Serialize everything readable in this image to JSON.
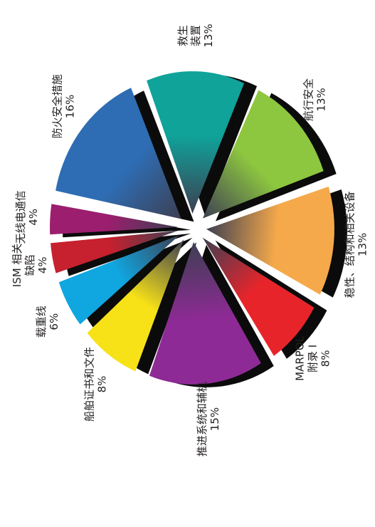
{
  "chart_data": {
    "type": "pie",
    "title": "",
    "exploded": true,
    "three_d": true,
    "label_orientation": "rotated-90",
    "categories": [
      "救生装置",
      "航行安全",
      "稳性、结构和相关设备",
      "MARPOL附录I",
      "推进系统和辅机",
      "船舶证书和文件",
      "载重线",
      "ISM相关缺陷",
      "无线电通信",
      "防火安全措施"
    ],
    "values": [
      13,
      13,
      13,
      8,
      15,
      8,
      6,
      4,
      4,
      16
    ],
    "slices": [
      {
        "label_lines": [
          "救生",
          "装置",
          "13%"
        ],
        "value": 13,
        "color": "#0fa39a"
      },
      {
        "label_lines": [
          "航行安全",
          "13%"
        ],
        "value": 13,
        "color": "#8dc63f"
      },
      {
        "label_lines": [
          "稳性、结构和相关设备",
          "13%"
        ],
        "value": 13,
        "color": "#f5a94a"
      },
      {
        "label_lines": [
          "MARPOL",
          "附录 I",
          "8%"
        ],
        "value": 8,
        "color": "#e8242b"
      },
      {
        "label_lines": [
          "推进系统和辅机",
          "15%"
        ],
        "value": 15,
        "color": "#8e2a95"
      },
      {
        "label_lines": [
          "船舶证书和文件",
          "8%"
        ],
        "value": 8,
        "color": "#f7e217"
      },
      {
        "label_lines": [
          "载重线",
          "6%"
        ],
        "value": 6,
        "color": "#10a6e0"
      },
      {
        "label_lines": [
          "ISM 相关",
          "缺陷",
          "4%"
        ],
        "value": 4,
        "color": "#c7202e"
      },
      {
        "label_lines": [
          "无线电通信",
          "4%"
        ],
        "value": 4,
        "color": "#9c1e6e"
      },
      {
        "label_lines": [
          "防火安全措施",
          "16%"
        ],
        "value": 16,
        "color": "#2e6db4"
      }
    ]
  }
}
